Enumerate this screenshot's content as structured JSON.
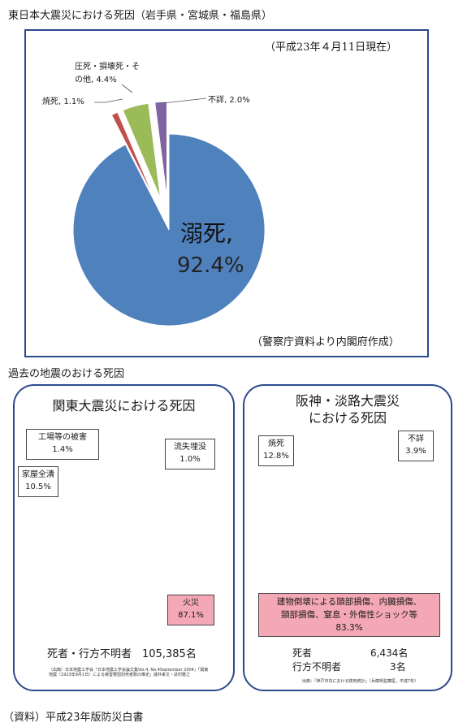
{
  "top_heading": "東日本大震災における死因（岩手県・宮城県・福島県）",
  "top_date_note": "（平成23年４月11日現在）",
  "top_source_note": "（警察庁資料より内閣府作成）",
  "middle_heading": "過去の地震のおける死因",
  "footer": "（資料）平成23年版防災白書",
  "kanto_title": "関東大震災における死因",
  "kanto_summary": "死者・行方不明者　105,385名",
  "kanto_source": "（出典）日本地震工学会『日本地震工学会論文集Vol.4, No.4September 2004』「関東地震（1923年9月1日）による被害要因別死者数の推定」諸井孝文・武村雅之",
  "hanshin_title_line1": "阪神・淡路大震災",
  "hanshin_title_line2": "における死因",
  "hanshin_dead_label": "死者",
  "hanshin_dead_value": "6,434名",
  "hanshin_missing_label": "行方不明者",
  "hanshin_missing_value": "3名",
  "hanshin_source": "出典：「神戸市内における検死統計」（兵庫県監察医，平成7年）",
  "colors": {
    "panel_border": "#2b4a8e",
    "blue": "#4f81bd",
    "red": "#c0392b",
    "green": "#77933c",
    "light_green": "#9bbb59",
    "purple": "#7a64a8",
    "pink_box": "#f4a7b4"
  },
  "chart_data": [
    {
      "type": "pie",
      "title": "東日本大震災における死因（岩手県・宮城県・福島県）",
      "unit": "%",
      "slices": [
        {
          "label": "溺死",
          "value": 92.4,
          "color": "#4f81bd",
          "text_a": "溺死,",
          "text_b": "92.4%"
        },
        {
          "label": "焼死",
          "value": 1.1,
          "color": "#c0504d",
          "text_a": "焼死, 1.1%"
        },
        {
          "label": "圧死・損壊死・その他",
          "value": 4.4,
          "color": "#9bbb59",
          "text_a": "圧死・損壊死・そ",
          "text_b": "の他, 4.4%"
        },
        {
          "label": "不詳",
          "value": 2.0,
          "color": "#8064a2",
          "text_a": "不詳, 2.0%"
        }
      ]
    },
    {
      "type": "pie",
      "title": "関東大震災における死因",
      "unit": "%",
      "slices": [
        {
          "label": "工場等の被害",
          "value": 1.4,
          "color": "#4f81bd",
          "text_a": "工場等の被害",
          "text_b": "1.4%"
        },
        {
          "label": "流失埋没",
          "value": 1.0,
          "color": "#8ec3e8",
          "text_a": "流失埋没",
          "text_b": "1.0%"
        },
        {
          "label": "火災",
          "value": 87.1,
          "color": "#c0392b",
          "text_a": "火災",
          "text_b": "87.1%"
        },
        {
          "label": "家屋全潰",
          "value": 10.5,
          "color": "#77933c",
          "text_a": "家屋全潰",
          "text_b": "10.5%"
        }
      ]
    },
    {
      "type": "pie",
      "title": "阪神・淡路大震災における死因",
      "unit": "%",
      "slices": [
        {
          "label": "建物倒壊による頭部損傷、内臓損傷、頸部損傷、窒息・外傷性ショック等",
          "value": 83.3,
          "color": "#77933c",
          "text_a": "建物倒壊による頭部損傷、内臓損傷、",
          "text_b": "頸部損傷、窒息・外傷性ショック等",
          "text_c": "83.3%"
        },
        {
          "label": "焼死",
          "value": 12.8,
          "color": "#c0392b",
          "text_a": "焼死",
          "text_b": "12.8%"
        },
        {
          "label": "不詳",
          "value": 3.9,
          "color": "#7a64a8",
          "text_a": "不詳",
          "text_b": "3.9%"
        }
      ]
    }
  ]
}
